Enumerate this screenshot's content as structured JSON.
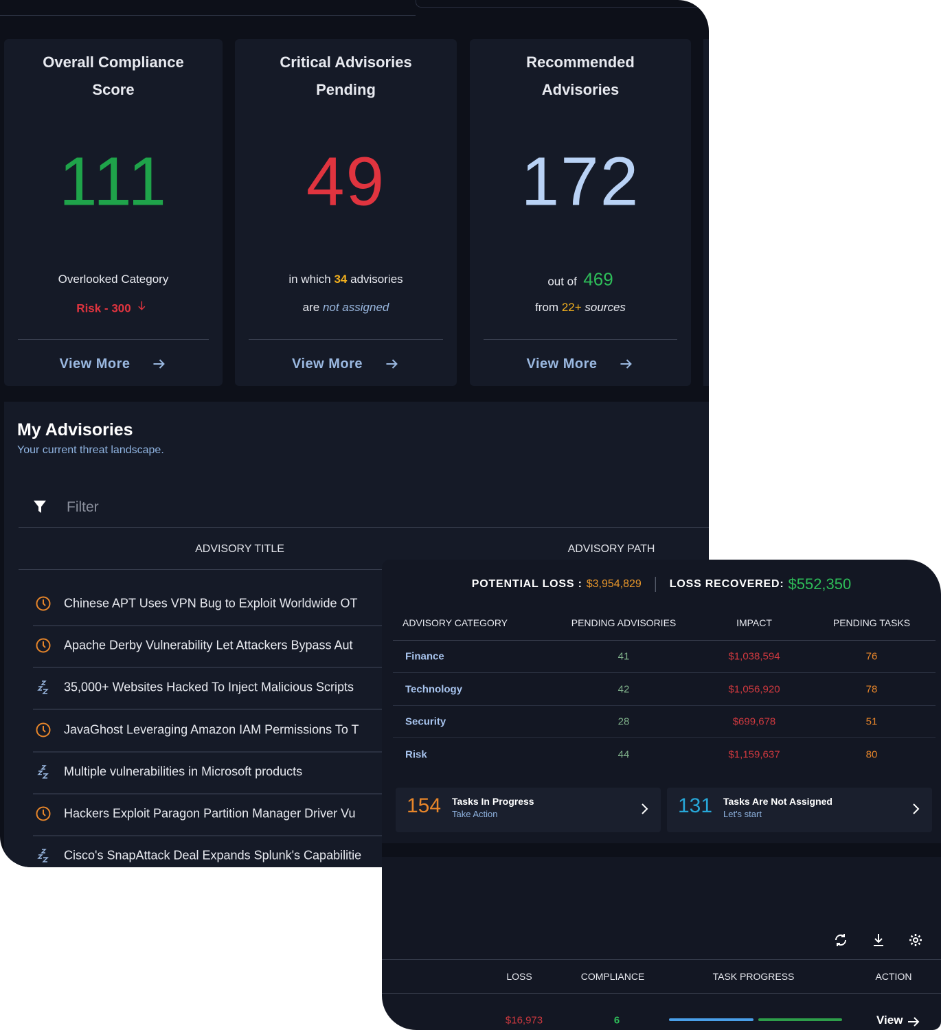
{
  "cards": [
    {
      "title": "Overall Compliance Score",
      "value": "111",
      "value_color": "#1fa34a",
      "lines": [
        [
          {
            "text": "Overlooked Category"
          }
        ],
        [
          {
            "text": "Risk - 300",
            "color": "#e0343f",
            "bold": true,
            "arrow": true
          }
        ]
      ],
      "link": "View More"
    },
    {
      "title": "Critical Advisories Pending",
      "value": "49",
      "value_color": "#e0343f",
      "lines": [
        [
          {
            "text": "in which "
          },
          {
            "text": "34",
            "color": "#f2b01e",
            "bold": true
          },
          {
            "text": " advisories"
          }
        ],
        [
          {
            "text": "are "
          },
          {
            "text": "not assigned",
            "color": "#9ab8e0",
            "italic": true
          }
        ]
      ],
      "link": "View More"
    },
    {
      "title": "Recommended Advisories",
      "value": "172",
      "value_color": "#b9d2f5",
      "lines": [
        [
          {
            "text": "out of  "
          },
          {
            "text": "469",
            "color": "#2ebd59",
            "size": 26
          }
        ],
        [
          {
            "text": "from "
          },
          {
            "text": "22+",
            "color": "#f2b01e"
          },
          {
            "text": " sources",
            "italic": true
          }
        ]
      ],
      "link": "View More"
    }
  ],
  "advisories": {
    "title": "My Advisories",
    "subtitle": "Your current threat landscape.",
    "filter": "Filter",
    "headers": [
      "ADVISORY TITLE",
      "ADVISORY PATH"
    ],
    "rows": [
      {
        "icon": "clock",
        "title": "Chinese APT Uses VPN Bug to Exploit Worldwide OT"
      },
      {
        "icon": "clock",
        "title": "Apache Derby Vulnerability Let Attackers Bypass Aut"
      },
      {
        "icon": "snooze",
        "title": "35,000+ Websites Hacked To Inject Malicious Scripts"
      },
      {
        "icon": "clock",
        "title": "JavaGhost Leveraging Amazon IAM Permissions To T"
      },
      {
        "icon": "snooze",
        "title": "Multiple vulnerabilities in Microsoft products"
      },
      {
        "icon": "clock",
        "title": "Hackers Exploit Paragon Partition Manager Driver Vu"
      },
      {
        "icon": "snooze",
        "title": "Cisco's SnapAttack Deal Expands Splunk's Capabilitie"
      }
    ]
  },
  "loss": {
    "potential_label": "POTENTIAL LOSS :",
    "potential": "$3,954,829",
    "recovered_label": "LOSS RECOVERED:",
    "recovered": "$552,350",
    "headers": [
      "ADVISORY CATEGORY",
      "PENDING ADVISORIES",
      "IMPACT",
      "PENDING TASKS"
    ],
    "rows": [
      [
        "Finance",
        "41",
        "$1,038,594",
        "76"
      ],
      [
        "Technology",
        "42",
        "$1,056,920",
        "78"
      ],
      [
        "Security",
        "28",
        "$699,678",
        "51"
      ],
      [
        "Risk",
        "44",
        "$1,159,637",
        "80"
      ]
    ],
    "tasks": [
      {
        "count": "154",
        "label": "Tasks In Progress",
        "sub": "Take Action",
        "color": "#e8862a"
      },
      {
        "count": "131",
        "label": "Tasks Are Not Assigned",
        "sub": "Let's start",
        "color": "#27a7d8"
      }
    ]
  },
  "lower_table": {
    "headers": [
      "LOSS",
      "COMPLIANCE",
      "TASK PROGRESS",
      "ACTION"
    ],
    "row": {
      "loss": "$16,973",
      "compliance": "6",
      "action": "View"
    }
  }
}
